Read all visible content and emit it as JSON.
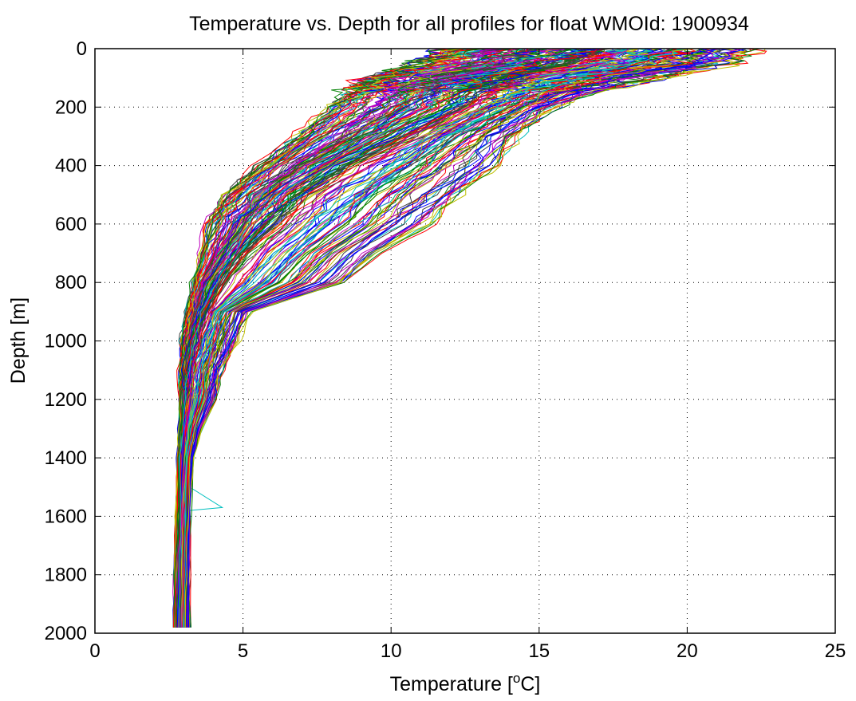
{
  "chart_data": {
    "type": "line",
    "title": "Temperature vs. Depth for all profiles for float WMOId: 1900934",
    "xlabel_prefix": "Temperature [",
    "xlabel_sup": "o",
    "xlabel_suffix": "C]",
    "ylabel": "Depth [m]",
    "xlim": [
      0,
      25
    ],
    "ylim": [
      0,
      2000
    ],
    "y_reversed": true,
    "grid": true,
    "grid_style": "dotted",
    "xticks": [
      0,
      5,
      10,
      15,
      20,
      25
    ],
    "yticks": [
      0,
      200,
      400,
      600,
      800,
      1000,
      1200,
      1400,
      1600,
      1800,
      2000
    ],
    "series_count": 200,
    "series_colors": [
      "#0000ff",
      "#008000",
      "#ff0000",
      "#00bfbf",
      "#bf00bf",
      "#bfbf00",
      "#404040"
    ],
    "depth": [
      0,
      50,
      100,
      150,
      200,
      300,
      400,
      500,
      600,
      700,
      800,
      900,
      1000,
      1100,
      1200,
      1300,
      1400,
      1600,
      1800,
      1980
    ],
    "profile_envelope": {
      "warm": [
        22.2,
        21.5,
        19.0,
        17.0,
        15.5,
        14.2,
        13.6,
        12.4,
        11.3,
        9.6,
        8.5,
        5.2,
        4.8,
        4.3,
        4.1,
        3.6,
        3.3,
        3.2,
        3.2,
        3.2
      ],
      "median": [
        17.0,
        16.0,
        14.0,
        13.0,
        12.5,
        10.5,
        8.5,
        7.0,
        6.0,
        5.0,
        4.2,
        3.7,
        3.4,
        3.2,
        3.1,
        3.0,
        2.95,
        2.9,
        2.85,
        2.85
      ],
      "cold": [
        12.0,
        11.0,
        9.5,
        8.5,
        8.0,
        6.8,
        5.6,
        4.5,
        3.9,
        3.6,
        3.3,
        3.15,
        3.0,
        2.95,
        2.9,
        2.85,
        2.8,
        2.75,
        2.7,
        2.7
      ]
    },
    "outlier_spike": {
      "depth_top": 1500,
      "depth_peak": 1570,
      "depth_bottom": 1580,
      "temp_base": 3.2,
      "temp_peak": 4.3
    }
  }
}
